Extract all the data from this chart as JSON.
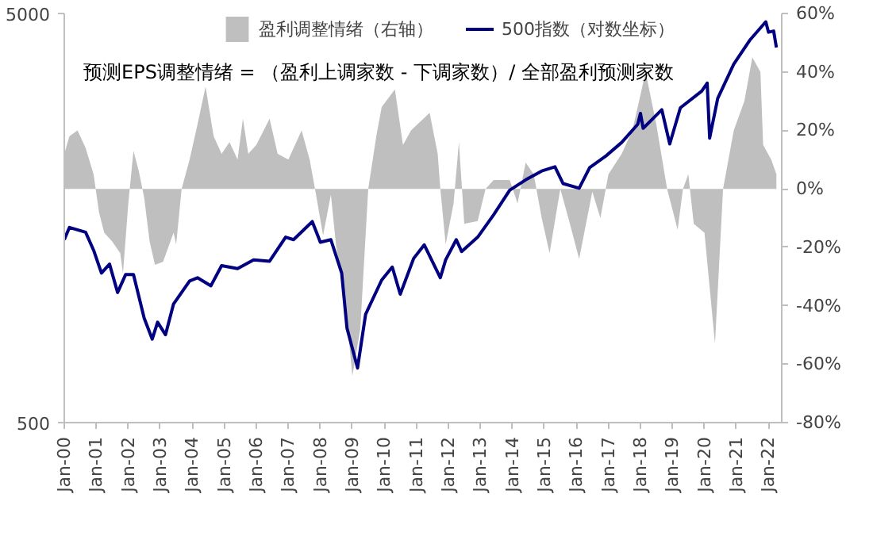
{
  "chart_data": {
    "type": "line",
    "annotations": [
      "预测EPS调整情绪 = （盈利上调家数 - 下调家数）/ 全部盈利预测家数"
    ],
    "legend": "top",
    "grid": false,
    "log": "y",
    "xlim": [
      "2000-01-01",
      "2022-06-01"
    ],
    "xticks": [
      {
        "value": "2000-01-01",
        "label": "Jan-00"
      },
      {
        "value": "2001-01-01",
        "label": "Jan-01"
      },
      {
        "value": "2002-01-01",
        "label": "Jan-02"
      },
      {
        "value": "2003-01-01",
        "label": "Jan-03"
      },
      {
        "value": "2004-01-01",
        "label": "Jan-04"
      },
      {
        "value": "2005-01-01",
        "label": "Jan-05"
      },
      {
        "value": "2006-01-01",
        "label": "Jan-06"
      },
      {
        "value": "2007-01-01",
        "label": "Jan-07"
      },
      {
        "value": "2008-01-01",
        "label": "Jan-08"
      },
      {
        "value": "2009-01-01",
        "label": "Jan-09"
      },
      {
        "value": "2010-01-01",
        "label": "Jan-10"
      },
      {
        "value": "2011-01-01",
        "label": "Jan-11"
      },
      {
        "value": "2012-01-01",
        "label": "Jan-12"
      },
      {
        "value": "2013-01-01",
        "label": "Jan-13"
      },
      {
        "value": "2014-01-01",
        "label": "Jan-14"
      },
      {
        "value": "2015-01-01",
        "label": "Jan-15"
      },
      {
        "value": "2016-01-01",
        "label": "Jan-16"
      },
      {
        "value": "2017-01-01",
        "label": "Jan-17"
      },
      {
        "value": "2018-01-01",
        "label": "Jan-18"
      },
      {
        "value": "2019-01-01",
        "label": "Jan-19"
      },
      {
        "value": "2020-01-01",
        "label": "Jan-20"
      },
      {
        "value": "2021-01-01",
        "label": "Jan-21"
      },
      {
        "value": "2022-01-01",
        "label": "Jan-22"
      }
    ],
    "ylim": [
      500,
      5000
    ],
    "yticks": [
      500,
      5000
    ],
    "y2lim": [
      -80,
      60
    ],
    "y2ticks": [
      {
        "value": -80,
        "label": "-80%"
      },
      {
        "value": -60,
        "label": "-60%"
      },
      {
        "value": -40,
        "label": "-40%"
      },
      {
        "value": -20,
        "label": "-20%"
      },
      {
        "value": 0,
        "label": "0%"
      },
      {
        "value": 20,
        "label": "20%"
      },
      {
        "value": 40,
        "label": "40%"
      },
      {
        "value": 60,
        "label": "60%"
      }
    ],
    "series": [
      {
        "name": "盈利调整情绪（右轴）",
        "type": "area",
        "axis": "y2",
        "color": "#bfbfbf",
        "x": [
          "2000-01",
          "2000-03",
          "2000-06",
          "2000-09",
          "2000-12",
          "2001-02",
          "2001-04",
          "2001-07",
          "2001-10",
          "2001-11",
          "2002-01",
          "2002-03",
          "2002-05",
          "2002-07",
          "2002-09",
          "2002-11",
          "2003-02",
          "2003-06",
          "2003-07",
          "2003-09",
          "2003-12",
          "2004-03",
          "2004-06",
          "2004-09",
          "2004-12",
          "2005-03",
          "2005-06",
          "2005-08",
          "2005-10",
          "2006-01",
          "2006-06",
          "2006-09",
          "2007-01",
          "2007-06",
          "2007-09",
          "2007-11",
          "2008-02",
          "2008-05",
          "2008-07",
          "2008-10",
          "2009-01",
          "2009-04",
          "2009-07",
          "2009-10",
          "2009-12",
          "2010-05",
          "2010-08",
          "2010-11",
          "2011-06",
          "2011-09",
          "2011-10",
          "2011-12",
          "2012-03",
          "2012-05",
          "2012-07",
          "2012-12",
          "2013-03",
          "2013-06",
          "2013-12",
          "2014-03",
          "2014-06",
          "2014-09",
          "2014-12",
          "2015-03",
          "2015-07",
          "2015-10",
          "2016-02",
          "2016-07",
          "2016-10",
          "2017-01",
          "2017-06",
          "2017-10",
          "2018-03",
          "2018-07",
          "2018-11",
          "2019-03",
          "2019-05",
          "2019-07",
          "2019-09",
          "2020-01",
          "2020-05",
          "2020-08",
          "2020-12",
          "2021-04",
          "2021-07",
          "2021-10",
          "2021-11",
          "2022-02",
          "2022-04"
        ],
        "values": [
          12,
          18,
          20,
          14,
          5,
          -8,
          -15,
          -18,
          -22,
          -29,
          -5,
          13,
          6,
          -3,
          -18,
          -26,
          -25,
          -15,
          -19,
          0,
          10,
          22,
          35,
          18,
          12,
          16,
          10,
          24,
          12,
          15,
          24,
          12,
          10,
          20,
          10,
          0,
          -16,
          -2,
          -20,
          -35,
          -64,
          -48,
          0,
          18,
          28,
          34,
          15,
          20,
          26,
          12,
          0,
          -19,
          -5,
          16,
          -12,
          -11,
          0,
          3,
          3,
          -5,
          9,
          5,
          -10,
          -22,
          0,
          -10,
          -24,
          -1,
          -10,
          5,
          12,
          20,
          40,
          22,
          0,
          -14,
          0,
          5,
          -12,
          -15,
          -53,
          0,
          20,
          30,
          45,
          40,
          15,
          10,
          5
        ]
      },
      {
        "name": "500指数（对数坐标）",
        "type": "line",
        "axis": "y",
        "color": "#000080",
        "x": [
          "2000-01",
          "2000-03",
          "2000-09",
          "2000-12",
          "2001-03",
          "2001-06",
          "2001-09",
          "2001-12",
          "2002-03",
          "2002-07",
          "2002-10",
          "2002-12",
          "2003-03",
          "2003-06",
          "2003-12",
          "2004-03",
          "2004-08",
          "2004-12",
          "2005-06",
          "2005-12",
          "2006-06",
          "2006-12",
          "2007-03",
          "2007-10",
          "2008-01",
          "2008-05",
          "2008-09",
          "2008-11",
          "2009-03",
          "2009-06",
          "2009-12",
          "2010-04",
          "2010-07",
          "2010-12",
          "2011-04",
          "2011-10",
          "2011-12",
          "2012-04",
          "2012-06",
          "2012-12",
          "2013-06",
          "2013-12",
          "2014-06",
          "2014-12",
          "2015-05",
          "2015-08",
          "2016-02",
          "2016-06",
          "2016-12",
          "2017-06",
          "2017-12",
          "2018-01",
          "2018-02",
          "2018-09",
          "2018-12",
          "2019-04",
          "2019-12",
          "2020-02",
          "2020-03",
          "2020-06",
          "2020-12",
          "2021-06",
          "2021-12",
          "2022-01",
          "2022-03",
          "2022-04"
        ],
        "values": [
          1400,
          1500,
          1460,
          1320,
          1160,
          1220,
          1040,
          1150,
          1150,
          900,
          800,
          880,
          820,
          975,
          1110,
          1130,
          1080,
          1210,
          1190,
          1250,
          1240,
          1420,
          1400,
          1550,
          1380,
          1400,
          1160,
          850,
          680,
          920,
          1115,
          1200,
          1030,
          1260,
          1360,
          1130,
          1250,
          1400,
          1310,
          1420,
          1610,
          1850,
          1960,
          2060,
          2110,
          1920,
          1870,
          2100,
          2240,
          2420,
          2680,
          2850,
          2620,
          2910,
          2400,
          2940,
          3230,
          3380,
          2480,
          3100,
          3760,
          4300,
          4770,
          4500,
          4530,
          4130
        ]
      }
    ]
  }
}
